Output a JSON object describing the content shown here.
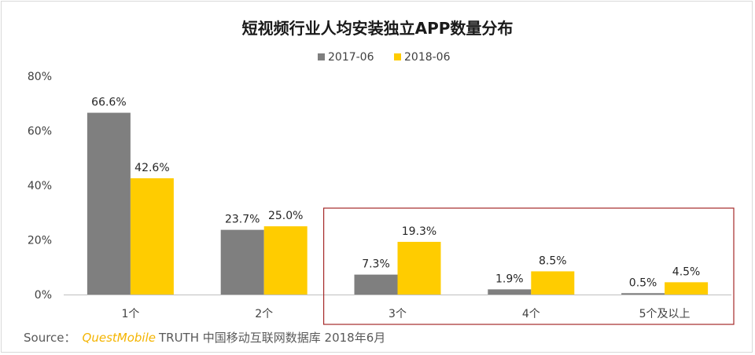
{
  "chart_data": {
    "type": "bar",
    "title": "短视频行业人均安装独立APP数量分布",
    "categories": [
      "1个",
      "2个",
      "3个",
      "4个",
      "5个及以上"
    ],
    "series": [
      {
        "name": "2017-06",
        "values": [
          66.6,
          23.7,
          7.3,
          1.9,
          0.5
        ],
        "labels": [
          "66.6%",
          "23.7%",
          "7.3%",
          "1.9%",
          "0.5%"
        ],
        "color": "#7f7f7f"
      },
      {
        "name": "2018-06",
        "values": [
          42.6,
          25.0,
          19.3,
          8.5,
          4.5
        ],
        "labels": [
          "42.6%",
          "25.0%",
          "19.3%",
          "8.5%",
          "4.5%"
        ],
        "color": "#ffcc00"
      }
    ],
    "ylim": [
      0,
      80
    ],
    "yticks": [
      "0%",
      "20%",
      "40%",
      "60%",
      "80%"
    ],
    "ytick_values": [
      0,
      20,
      40,
      60,
      80
    ],
    "legend_position": "top-center",
    "grid": false,
    "highlight_box_color": "#a52a2a",
    "highlight_categories": [
      "3个",
      "4个",
      "5个及以上"
    ]
  },
  "source": {
    "prefix": "Source：",
    "brand": "QuestMobile",
    "text": "TRUTH 中国移动互联网数据库 2018年6月"
  }
}
